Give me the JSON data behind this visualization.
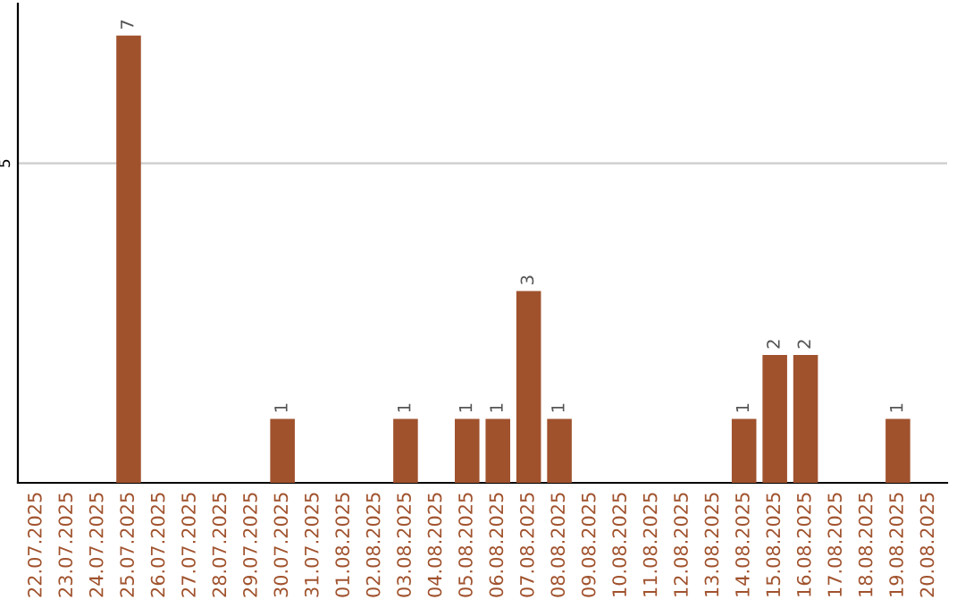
{
  "chart_data": {
    "type": "bar",
    "categories": [
      "22.07.2025",
      "23.07.2025",
      "24.07.2025",
      "25.07.2025",
      "26.07.2025",
      "27.07.2025",
      "28.07.2025",
      "29.07.2025",
      "30.07.2025",
      "31.07.2025",
      "01.08.2025",
      "02.08.2025",
      "03.08.2025",
      "04.08.2025",
      "05.08.2025",
      "06.08.2025",
      "07.08.2025",
      "08.08.2025",
      "09.08.2025",
      "10.08.2025",
      "11.08.2025",
      "12.08.2025",
      "13.08.2025",
      "14.08.2025",
      "15.08.2025",
      "16.08.2025",
      "17.08.2025",
      "18.08.2025",
      "19.08.2025",
      "20.08.2025"
    ],
    "values": [
      0,
      0,
      0,
      7,
      0,
      0,
      0,
      0,
      1,
      0,
      0,
      0,
      1,
      0,
      1,
      1,
      3,
      1,
      0,
      0,
      0,
      0,
      0,
      1,
      2,
      2,
      0,
      0,
      1,
      0
    ],
    "color": "#a0522d",
    "value_labels": [
      null,
      null,
      null,
      "7",
      null,
      null,
      null,
      null,
      "1",
      null,
      null,
      null,
      "1",
      null,
      "1",
      "1",
      "3",
      "1",
      null,
      null,
      null,
      null,
      null,
      "1",
      "2",
      "2",
      null,
      null,
      "1",
      null
    ],
    "ylim": [
      0,
      7.5
    ],
    "yticks": [
      5
    ],
    "grid": "y"
  }
}
